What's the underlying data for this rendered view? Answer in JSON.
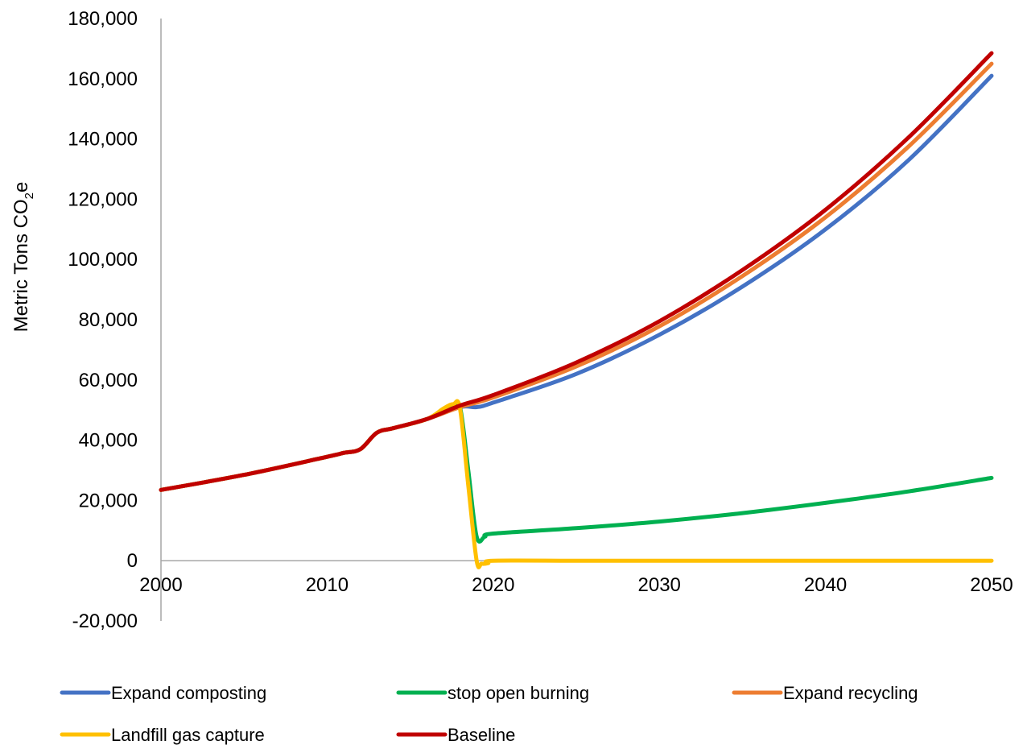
{
  "chart_data": {
    "type": "line",
    "ylabel_main": "Metric Tons CO",
    "ylabel_sub": "2",
    "ylabel_tail": "e",
    "xlim": [
      2000,
      2050
    ],
    "ylim": [
      -20000,
      180000
    ],
    "x_ticks": [
      "2000",
      "2010",
      "2020",
      "2030",
      "2040",
      "2050"
    ],
    "y_ticks": [
      "180,000",
      "160,000",
      "140,000",
      "120,000",
      "100,000",
      "80,000",
      "60,000",
      "40,000",
      "20,000",
      "0",
      "-20,000"
    ],
    "grid": false,
    "legend_position": "bottom",
    "series": [
      {
        "name": "Expand composting",
        "color": "#4472C4",
        "points": [
          [
            2000,
            23500
          ],
          [
            2005,
            28500
          ],
          [
            2010,
            34500
          ],
          [
            2011,
            35800
          ],
          [
            2012,
            37000
          ],
          [
            2013,
            42500
          ],
          [
            2014,
            44000
          ],
          [
            2016,
            47000
          ],
          [
            2018,
            51000
          ],
          [
            2019,
            51000
          ],
          [
            2020,
            52500
          ],
          [
            2025,
            62000
          ],
          [
            2030,
            75000
          ],
          [
            2035,
            91000
          ],
          [
            2040,
            110000
          ],
          [
            2045,
            133000
          ],
          [
            2050,
            161000
          ]
        ]
      },
      {
        "name": "stop open burning",
        "color": "#00B050",
        "points": [
          [
            2000,
            23500
          ],
          [
            2005,
            28500
          ],
          [
            2010,
            34500
          ],
          [
            2011,
            35800
          ],
          [
            2012,
            37000
          ],
          [
            2013,
            42500
          ],
          [
            2014,
            44000
          ],
          [
            2016,
            47000
          ],
          [
            2017.5,
            51000
          ],
          [
            2018,
            51000
          ],
          [
            2018.5,
            30000
          ],
          [
            2019,
            8000
          ],
          [
            2019.5,
            8000
          ],
          [
            2020,
            9000
          ],
          [
            2025,
            10800
          ],
          [
            2030,
            13000
          ],
          [
            2035,
            15800
          ],
          [
            2040,
            19200
          ],
          [
            2045,
            23000
          ],
          [
            2050,
            27500
          ]
        ]
      },
      {
        "name": "Expand recycling",
        "color": "#ED7D31",
        "points": [
          [
            2000,
            23500
          ],
          [
            2005,
            28500
          ],
          [
            2010,
            34500
          ],
          [
            2011,
            35800
          ],
          [
            2012,
            37000
          ],
          [
            2013,
            42500
          ],
          [
            2014,
            44000
          ],
          [
            2016,
            47000
          ],
          [
            2018,
            51000
          ],
          [
            2020,
            54200
          ],
          [
            2025,
            64500
          ],
          [
            2030,
            77800
          ],
          [
            2035,
            94500
          ],
          [
            2040,
            114000
          ],
          [
            2045,
            137500
          ],
          [
            2050,
            165000
          ]
        ]
      },
      {
        "name": "Landfill gas capture",
        "color": "#FFC000",
        "points": [
          [
            2000,
            23500
          ],
          [
            2005,
            28500
          ],
          [
            2010,
            34500
          ],
          [
            2011,
            35800
          ],
          [
            2012,
            37000
          ],
          [
            2013,
            42500
          ],
          [
            2014,
            44000
          ],
          [
            2016,
            47000
          ],
          [
            2017,
            50500
          ],
          [
            2017.6,
            52000
          ],
          [
            2018,
            50500
          ],
          [
            2018.5,
            25000
          ],
          [
            2019,
            0
          ],
          [
            2019.3,
            -1000
          ],
          [
            2019.7,
            -800
          ],
          [
            2020,
            0
          ],
          [
            2025,
            0
          ],
          [
            2030,
            0
          ],
          [
            2035,
            0
          ],
          [
            2040,
            0
          ],
          [
            2045,
            0
          ],
          [
            2050,
            0
          ]
        ]
      },
      {
        "name": "Baseline",
        "color": "#C00000",
        "points": [
          [
            2000,
            23500
          ],
          [
            2005,
            28500
          ],
          [
            2010,
            34500
          ],
          [
            2011,
            35800
          ],
          [
            2012,
            37000
          ],
          [
            2013,
            42500
          ],
          [
            2014,
            44000
          ],
          [
            2016,
            47000
          ],
          [
            2018,
            51500
          ],
          [
            2020,
            55000
          ],
          [
            2025,
            65800
          ],
          [
            2030,
            79500
          ],
          [
            2035,
            96500
          ],
          [
            2040,
            116500
          ],
          [
            2045,
            140500
          ],
          [
            2050,
            168500
          ]
        ]
      }
    ]
  }
}
